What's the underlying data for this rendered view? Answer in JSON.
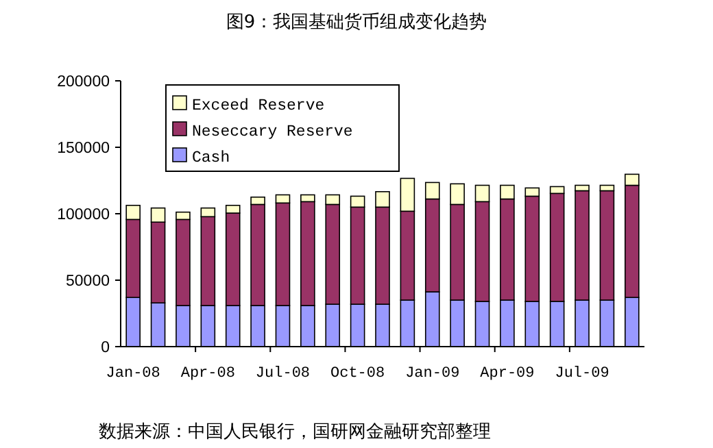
{
  "chart_data": {
    "type": "bar",
    "stacked": true,
    "title": "图9：我国基础货币组成变化趋势",
    "categories": [
      "Jan-08",
      null,
      null,
      "Apr-08",
      null,
      null,
      "Jul-08",
      null,
      null,
      "Oct-08",
      null,
      null,
      "Jan-09",
      null,
      null,
      "Apr-09",
      null,
      null,
      "Jul-09",
      null,
      null
    ],
    "series": [
      {
        "name": "Cash",
        "color": "#9999ff",
        "values": [
          37000,
          32900,
          30900,
          30900,
          30900,
          30900,
          30900,
          30900,
          31900,
          31900,
          31900,
          35000,
          41200,
          35000,
          34000,
          35000,
          34000,
          34000,
          35000,
          35000,
          37000
        ]
      },
      {
        "name": "Neseccary Reserve",
        "color": "#993366",
        "values": [
          58700,
          60800,
          64800,
          66900,
          69600,
          76100,
          77200,
          78200,
          75100,
          73100,
          73100,
          66900,
          69900,
          72000,
          75100,
          76100,
          79200,
          81300,
          82300,
          82300,
          84400
        ]
      },
      {
        "name": "Exceed Reserve",
        "color": "#ffffcc",
        "values": [
          10600,
          10600,
          5500,
          6500,
          5800,
          5500,
          6100,
          5100,
          7200,
          8200,
          11600,
          24700,
          12400,
          15500,
          12300,
          10300,
          6200,
          5100,
          4100,
          4100,
          8300
        ]
      }
    ],
    "ylim": [
      0,
      200000
    ],
    "yticks": [
      0,
      50000,
      100000,
      150000,
      200000
    ],
    "grid": false,
    "legend": "top left",
    "annotations": [
      "数据来源：中国人民银行，国研网金融研究部整理"
    ]
  }
}
